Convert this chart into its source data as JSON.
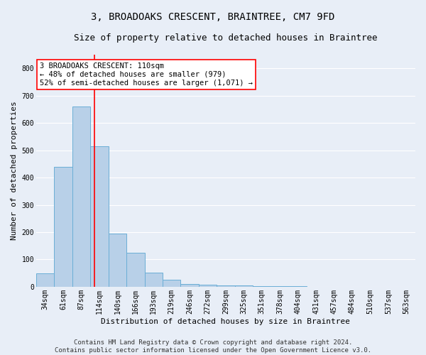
{
  "title": "3, BROADOAKS CRESCENT, BRAINTREE, CM7 9FD",
  "subtitle": "Size of property relative to detached houses in Braintree",
  "xlabel": "Distribution of detached houses by size in Braintree",
  "ylabel": "Number of detached properties",
  "categories": [
    "34sqm",
    "61sqm",
    "87sqm",
    "114sqm",
    "140sqm",
    "166sqm",
    "193sqm",
    "219sqm",
    "246sqm",
    "272sqm",
    "299sqm",
    "325sqm",
    "351sqm",
    "378sqm",
    "404sqm",
    "431sqm",
    "457sqm",
    "484sqm",
    "510sqm",
    "537sqm",
    "563sqm"
  ],
  "values": [
    50,
    440,
    660,
    515,
    195,
    125,
    52,
    27,
    10,
    8,
    5,
    4,
    3,
    2,
    2,
    1,
    1,
    1,
    1,
    1,
    1
  ],
  "bar_color": "#b8d0e8",
  "bar_edge_color": "#6aaed6",
  "vline_color": "red",
  "vline_x": 2.72,
  "annotation_text": "3 BROADOAKS CRESCENT: 110sqm\n← 48% of detached houses are smaller (979)\n52% of semi-detached houses are larger (1,071) →",
  "annotation_box_color": "white",
  "annotation_box_edge_color": "red",
  "ylim": [
    0,
    850
  ],
  "yticks": [
    0,
    100,
    200,
    300,
    400,
    500,
    600,
    700,
    800
  ],
  "plot_bg_color": "#e8eef7",
  "fig_bg_color": "#e8eef7",
  "grid_color": "white",
  "footer_line1": "Contains HM Land Registry data © Crown copyright and database right 2024.",
  "footer_line2": "Contains public sector information licensed under the Open Government Licence v3.0.",
  "title_fontsize": 10,
  "subtitle_fontsize": 9,
  "xlabel_fontsize": 8,
  "ylabel_fontsize": 8,
  "tick_fontsize": 7,
  "annotation_fontsize": 7.5,
  "footer_fontsize": 6.5
}
